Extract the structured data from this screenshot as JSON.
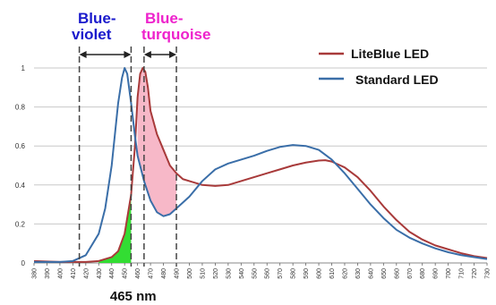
{
  "chart_data": {
    "type": "line",
    "xlabel": "",
    "ylabel": "",
    "xlim": [
      380,
      730
    ],
    "ylim": [
      0,
      1
    ],
    "x_ticks": [
      380,
      390,
      400,
      410,
      420,
      430,
      440,
      450,
      460,
      470,
      480,
      490,
      500,
      510,
      520,
      530,
      540,
      550,
      560,
      570,
      580,
      590,
      600,
      610,
      620,
      630,
      640,
      650,
      660,
      670,
      680,
      690,
      700,
      710,
      720,
      730
    ],
    "y_ticks": [
      {
        "value": 0,
        "label": "0"
      },
      {
        "value": 0.2,
        "label": "0.2"
      },
      {
        "value": 0.4,
        "label": "0.4"
      },
      {
        "value": 0.6,
        "label": "0.6"
      },
      {
        "value": 0.8,
        "label": "0.8"
      },
      {
        "value": 1,
        "label": "1"
      }
    ],
    "grid": "horizontal",
    "legend_position": "top-right",
    "series": [
      {
        "name": "LiteBlue LED",
        "color": "#a83a3a",
        "points": [
          [
            380,
            0.01
          ],
          [
            400,
            0.005
          ],
          [
            420,
            0.005
          ],
          [
            430,
            0.01
          ],
          [
            440,
            0.03
          ],
          [
            445,
            0.06
          ],
          [
            450,
            0.15
          ],
          [
            455,
            0.35
          ],
          [
            458,
            0.6
          ],
          [
            460,
            0.85
          ],
          [
            462,
            0.97
          ],
          [
            464,
            1.0
          ],
          [
            466,
            0.98
          ],
          [
            468,
            0.9
          ],
          [
            470,
            0.78
          ],
          [
            475,
            0.66
          ],
          [
            480,
            0.58
          ],
          [
            485,
            0.5
          ],
          [
            490,
            0.46
          ],
          [
            495,
            0.43
          ],
          [
            500,
            0.42
          ],
          [
            510,
            0.4
          ],
          [
            520,
            0.395
          ],
          [
            530,
            0.4
          ],
          [
            540,
            0.42
          ],
          [
            550,
            0.44
          ],
          [
            560,
            0.46
          ],
          [
            570,
            0.48
          ],
          [
            580,
            0.5
          ],
          [
            590,
            0.515
          ],
          [
            600,
            0.525
          ],
          [
            605,
            0.527
          ],
          [
            610,
            0.52
          ],
          [
            620,
            0.49
          ],
          [
            630,
            0.44
          ],
          [
            640,
            0.37
          ],
          [
            650,
            0.29
          ],
          [
            660,
            0.22
          ],
          [
            670,
            0.16
          ],
          [
            680,
            0.12
          ],
          [
            690,
            0.09
          ],
          [
            700,
            0.07
          ],
          [
            710,
            0.05
          ],
          [
            720,
            0.035
          ],
          [
            730,
            0.025
          ]
        ]
      },
      {
        "name": "Standard LED",
        "color": "#3a6ea8",
        "points": [
          [
            380,
            0.005
          ],
          [
            400,
            0.005
          ],
          [
            410,
            0.01
          ],
          [
            420,
            0.04
          ],
          [
            430,
            0.15
          ],
          [
            435,
            0.28
          ],
          [
            440,
            0.5
          ],
          [
            445,
            0.82
          ],
          [
            448,
            0.95
          ],
          [
            450,
            1.0
          ],
          [
            452,
            0.97
          ],
          [
            455,
            0.82
          ],
          [
            458,
            0.65
          ],
          [
            460,
            0.55
          ],
          [
            465,
            0.42
          ],
          [
            470,
            0.32
          ],
          [
            475,
            0.26
          ],
          [
            480,
            0.24
          ],
          [
            485,
            0.25
          ],
          [
            490,
            0.28
          ],
          [
            500,
            0.34
          ],
          [
            510,
            0.42
          ],
          [
            520,
            0.48
          ],
          [
            530,
            0.51
          ],
          [
            540,
            0.53
          ],
          [
            550,
            0.55
          ],
          [
            560,
            0.575
          ],
          [
            570,
            0.595
          ],
          [
            580,
            0.605
          ],
          [
            590,
            0.6
          ],
          [
            600,
            0.58
          ],
          [
            610,
            0.53
          ],
          [
            620,
            0.46
          ],
          [
            630,
            0.38
          ],
          [
            640,
            0.3
          ],
          [
            650,
            0.23
          ],
          [
            660,
            0.17
          ],
          [
            670,
            0.13
          ],
          [
            680,
            0.1
          ],
          [
            690,
            0.075
          ],
          [
            700,
            0.055
          ],
          [
            710,
            0.04
          ],
          [
            720,
            0.03
          ],
          [
            730,
            0.02
          ]
        ]
      }
    ],
    "shaded_regions": [
      {
        "name": "green-fill",
        "color": "#33dd33",
        "x_range": [
          430,
          455
        ],
        "under_series": "LiteBlue LED"
      },
      {
        "name": "pink-fill",
        "color": "#f7b8c8",
        "between_series": [
          "LiteBlue LED",
          "Standard LED"
        ],
        "x_range": [
          460,
          490
        ]
      }
    ],
    "markers": [
      {
        "x": 415,
        "style": "dashed"
      },
      {
        "x": 455,
        "style": "dashed"
      },
      {
        "x": 465,
        "style": "dashed"
      },
      {
        "x": 490,
        "style": "dashed"
      }
    ],
    "annotations": {
      "blue_violet": {
        "text_line1": "Blue-",
        "text_line2": "violet",
        "color": "#1a1acc",
        "x_range": [
          415,
          455
        ]
      },
      "blue_turquoise": {
        "text_line1": "Blue-",
        "text_line2": "turquoise",
        "color": "#ee22cc",
        "x_range": [
          465,
          490
        ]
      },
      "peak_label": {
        "text": "465 nm",
        "x": 465
      }
    }
  }
}
